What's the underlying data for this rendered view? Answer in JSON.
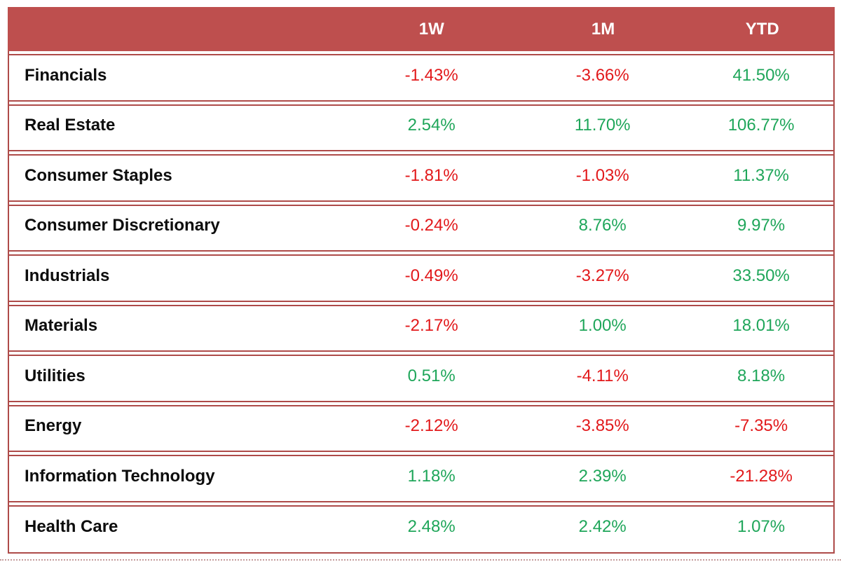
{
  "header": {
    "sector_label": "",
    "col_1w": "1W",
    "col_1m": "1M",
    "col_ytd": "YTD"
  },
  "rows": [
    {
      "sector": "Financials",
      "w1": "-1.43%",
      "m1": "-3.66%",
      "ytd": "41.50%"
    },
    {
      "sector": "Real Estate",
      "w1": "2.54%",
      "m1": "11.70%",
      "ytd": "106.77%"
    },
    {
      "sector": "Consumer Staples",
      "w1": "-1.81%",
      "m1": "-1.03%",
      "ytd": "11.37%"
    },
    {
      "sector": "Consumer Discretionary",
      "w1": "-0.24%",
      "m1": "8.76%",
      "ytd": "9.97%"
    },
    {
      "sector": "Industrials",
      "w1": "-0.49%",
      "m1": "-3.27%",
      "ytd": "33.50%"
    },
    {
      "sector": "Materials",
      "w1": "-2.17%",
      "m1": "1.00%",
      "ytd": "18.01%"
    },
    {
      "sector": "Utilities",
      "w1": "0.51%",
      "m1": "-4.11%",
      "ytd": "8.18%"
    },
    {
      "sector": "Energy",
      "w1": "-2.12%",
      "m1": "-3.85%",
      "ytd": "-7.35%"
    },
    {
      "sector": "Information Technology",
      "w1": "1.18%",
      "m1": "2.39%",
      "ytd": "-21.28%"
    },
    {
      "sector": "Health Care",
      "w1": "2.48%",
      "m1": "2.42%",
      "ytd": "1.07%"
    }
  ],
  "colors": {
    "header_bg": "#BE4F4E",
    "border": "#AE4B49",
    "positive": "#1FA65A",
    "negative": "#E2191B",
    "header_text": "#FFFFFF",
    "sector_text": "#0D0D0D"
  },
  "chart_data": {
    "type": "table",
    "categories": [
      "Financials",
      "Real Estate",
      "Consumer Staples",
      "Consumer Discretionary",
      "Industrials",
      "Materials",
      "Utilities",
      "Energy",
      "Information Technology",
      "Health Care"
    ],
    "series": [
      {
        "name": "1W",
        "values": [
          -1.43,
          2.54,
          -1.81,
          -0.24,
          -0.49,
          -2.17,
          0.51,
          -2.12,
          1.18,
          2.48
        ]
      },
      {
        "name": "1M",
        "values": [
          -3.66,
          11.7,
          -1.03,
          8.76,
          -3.27,
          1.0,
          -4.11,
          -3.85,
          2.39,
          2.42
        ]
      },
      {
        "name": "YTD",
        "values": [
          41.5,
          106.77,
          11.37,
          9.97,
          33.5,
          18.01,
          8.18,
          -7.35,
          -21.28,
          1.07
        ]
      }
    ],
    "value_format": "percent",
    "layout_hints": "header row red background with white labels; negative values red, positive values green; sector names bold black, left-aligned"
  }
}
